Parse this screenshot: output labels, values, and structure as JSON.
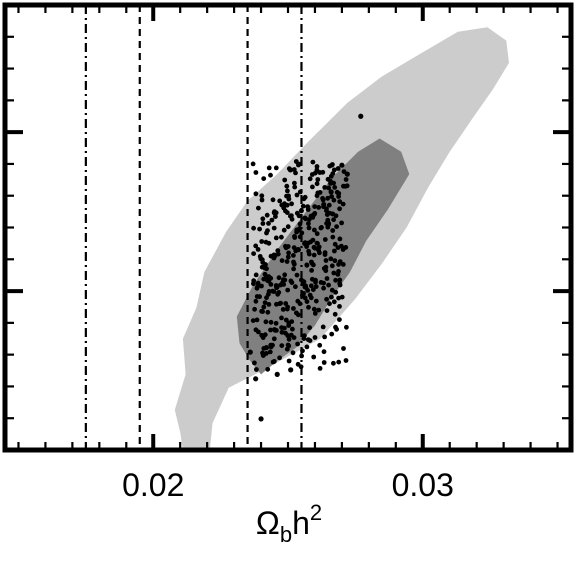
{
  "chart_data": {
    "type": "scatter",
    "title": "",
    "xlabel": {
      "base": "Ω",
      "sub": "b",
      "mid": "h",
      "sup": "2"
    },
    "ylabel": "",
    "xlim": [
      0.0145,
      0.0355
    ],
    "ylim": [
      0,
      1
    ],
    "y_ticks_labeled": false,
    "x_tick_labels": [
      {
        "value": 0.02,
        "label": "0.02"
      },
      {
        "value": 0.03,
        "label": "0.03"
      }
    ],
    "x_minor_step": 0.001,
    "vertical_lines": [
      {
        "x": 0.0175,
        "style": "dash-dot"
      },
      {
        "x": 0.0195,
        "style": "dashed"
      },
      {
        "x": 0.0235,
        "style": "dashed"
      },
      {
        "x": 0.0255,
        "style": "dash-dot"
      }
    ],
    "contours": [
      {
        "level": "outer",
        "color": "#cccccc",
        "points": [
          [
            0.0211,
            0.0
          ],
          [
            0.0221,
            0.0
          ],
          [
            0.0222,
            0.06
          ],
          [
            0.0228,
            0.14
          ],
          [
            0.0241,
            0.18
          ],
          [
            0.0262,
            0.25
          ],
          [
            0.0275,
            0.34
          ],
          [
            0.0285,
            0.42
          ],
          [
            0.0294,
            0.5
          ],
          [
            0.0302,
            0.59
          ],
          [
            0.031,
            0.67
          ],
          [
            0.0319,
            0.75
          ],
          [
            0.0326,
            0.81
          ],
          [
            0.0332,
            0.87
          ],
          [
            0.0331,
            0.92
          ],
          [
            0.0324,
            0.95
          ],
          [
            0.0313,
            0.94
          ],
          [
            0.0299,
            0.89
          ],
          [
            0.0285,
            0.84
          ],
          [
            0.0272,
            0.78
          ],
          [
            0.0257,
            0.69
          ],
          [
            0.0246,
            0.62
          ],
          [
            0.0235,
            0.56
          ],
          [
            0.0227,
            0.49
          ],
          [
            0.0219,
            0.4
          ],
          [
            0.0216,
            0.32
          ],
          [
            0.0211,
            0.25
          ],
          [
            0.0212,
            0.17
          ],
          [
            0.0208,
            0.09
          ],
          [
            0.021,
            0.04
          ]
        ]
      },
      {
        "level": "inner",
        "color": "#808080",
        "points": [
          [
            0.0236,
            0.2
          ],
          [
            0.0232,
            0.24
          ],
          [
            0.0231,
            0.3
          ],
          [
            0.0237,
            0.37
          ],
          [
            0.0246,
            0.45
          ],
          [
            0.0256,
            0.53
          ],
          [
            0.0266,
            0.61
          ],
          [
            0.0276,
            0.67
          ],
          [
            0.0284,
            0.7
          ],
          [
            0.0292,
            0.67
          ],
          [
            0.0295,
            0.62
          ],
          [
            0.0287,
            0.54
          ],
          [
            0.0279,
            0.47
          ],
          [
            0.0273,
            0.4
          ],
          [
            0.0266,
            0.34
          ],
          [
            0.026,
            0.28
          ],
          [
            0.0253,
            0.23
          ],
          [
            0.0246,
            0.2
          ],
          [
            0.024,
            0.17
          ]
        ]
      }
    ],
    "outlier_points": [
      [
        0.0277,
        0.75
      ],
      [
        0.024,
        0.07
      ],
      [
        0.0238,
        0.16
      ],
      [
        0.0246,
        0.17
      ],
      [
        0.0251,
        0.18
      ],
      [
        0.0236,
        0.22
      ],
      [
        0.0242,
        0.23
      ],
      [
        0.0272,
        0.62
      ],
      [
        0.027,
        0.64
      ],
      [
        0.0266,
        0.58
      ]
    ],
    "cluster": {
      "n": 420,
      "seed": 7,
      "mean": [
        0.0255,
        0.45
      ],
      "sd_along": 0.22,
      "sd_across": 0.0017,
      "dir": [
        0.00667,
        1.0
      ],
      "x_range": [
        0.0237,
        0.0272
      ],
      "y_range": [
        0.18,
        0.65
      ]
    }
  }
}
